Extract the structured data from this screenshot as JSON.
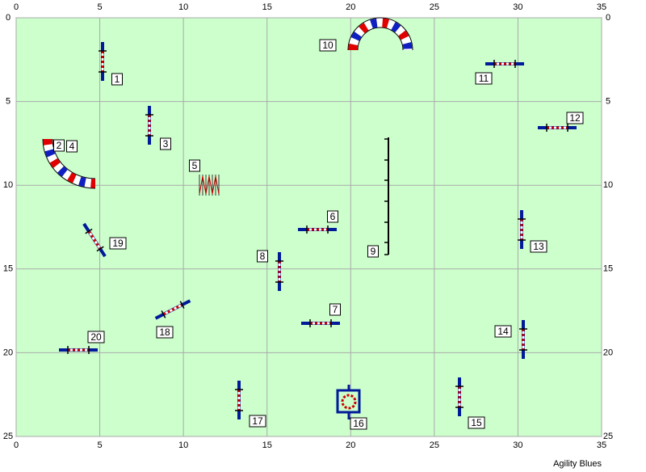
{
  "grid": {
    "xticks": [
      0,
      5,
      10,
      15,
      20,
      25,
      30,
      35
    ],
    "yticks": [
      0,
      5,
      10,
      15,
      20,
      25
    ]
  },
  "course": {
    "numbers": [
      "1",
      "2",
      "3",
      "4",
      "5",
      "6",
      "7",
      "8",
      "9",
      "10",
      "11",
      "12",
      "13",
      "14",
      "15",
      "16",
      "17",
      "18",
      "19",
      "20"
    ]
  },
  "footer": "Agility Blues"
}
